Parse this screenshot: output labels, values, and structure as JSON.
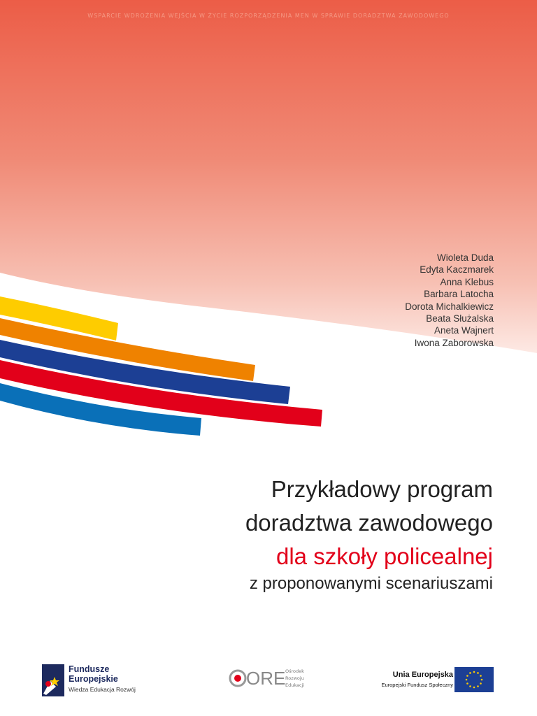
{
  "header": {
    "series_line": "WSPARCIE WDROŻENIA WEJŚCIA W ŻYCIE ROZPORZĄDZENIA MEN W SPRAWIE DORADZTWA ZAWODOWEGO"
  },
  "authors": [
    "Wioleta Duda",
    "Edyta Kaczmarek",
    "Anna Klebus",
    "Barbara Latocha",
    "Dorota Michalkiewicz",
    "Beata Służalska",
    "Aneta Wajnert",
    "Iwona Zaborowska"
  ],
  "title": {
    "lines": [
      "Przykładowy program",
      "doradztwa zawodowego"
    ],
    "highlight": "dla szkoły policealnej",
    "subtitle": "z proponowanymi scenariuszami"
  },
  "footer": {
    "fe": {
      "name_1": "Fundusze",
      "name_2": "Europejskie",
      "tagline": "Wiedza Edukacja Rozwój"
    },
    "ore": {
      "acronym": "ORE",
      "full": [
        "Ośrodek",
        "Rozwoju",
        "Edukacji"
      ]
    },
    "eu": {
      "name": "Unia Europejska",
      "fund": "Europejski Fundusz Społeczny"
    }
  }
}
